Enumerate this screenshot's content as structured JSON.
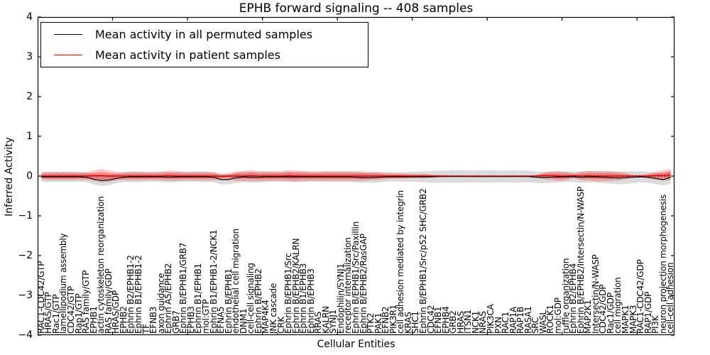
{
  "legend": {
    "items": [
      {
        "label": "Mean activity in all permuted samples",
        "color": "#000000"
      },
      {
        "label": "Mean activity in patient samples",
        "color": "#ff0000"
      }
    ]
  },
  "chart_data": {
    "type": "line",
    "title": "EPHB forward signaling -- 408 samples",
    "xlabel": "Cellular Entities",
    "ylabel": "Inferred Activity",
    "ylim": [
      -4,
      4
    ],
    "grid": false,
    "legend_position": "upper-left",
    "ytick_values": [
      4,
      3,
      2,
      1,
      0,
      -1,
      -2,
      -3,
      -4
    ],
    "ytick_labels": [
      "4",
      "3",
      "2",
      "1",
      "0",
      "−1",
      "−2",
      "−3",
      "−4"
    ],
    "xtick_positions": [
      10,
      20,
      30,
      40,
      50,
      60,
      70,
      80
    ],
    "categories": [
      "RAC1-CDC42/GTP",
      "HRAS/GTP",
      "Rac1/GTP",
      "lamellipodium assembly",
      "CDC42/GTP",
      "Rap1/GTP",
      "RAS family/GTP",
      "EPHB1",
      "actin cytoskeleton reorganization",
      "RAS family/GDP",
      "HRAS/GDP",
      "EPHB2",
      "Ephrin B2/EPHB1-2",
      "Ephrin B1/EPHB1-2",
      "TF",
      "EFNB3",
      "axon guidance",
      "Ephrin A5/EPHB2",
      "GRB7",
      "Ephrin B/EPHB1/GRB7",
      "EPHB3",
      "Ephrin B1/EPHB1",
      "mol:GTP",
      "Ephrin B1/EPHB1-2/NCK1",
      "EFNA5",
      "Ephrin B/EPHB1",
      "endothelial cell migration",
      "DNM1",
      "cell-cell signaling",
      "Ephrin B/EPHB2",
      "MAP4K4",
      "JNK cascade",
      "CRK",
      "Ephrin B/EPHB1/Src",
      "Ephrin B/EPHB2/KALRN",
      "Ephrin B1/EPHB3",
      "Ephrin B/EPHB3",
      "RRAS",
      "KALRN",
      "SYNJ1",
      "Endophilin/SYNJ1",
      "receptor internalization",
      "Ephrin B/EPHB1/Src/Paxillin",
      "Ephrin B/EPHB2/RasGAP",
      "PTK2",
      "PAK1",
      "EFNB2",
      "PIK3R1",
      "cell adhesion mediated by integrin",
      "KRAS",
      "SHC1",
      "Ephrin B/EPHB1/Src/p52 SHC/GRB2",
      "CDC42",
      "EFNB1",
      "EPHB4",
      "GRB2",
      "HRAS",
      "ITSN1",
      "NCK1",
      "NRAS",
      "PIK3CA",
      "PXN",
      "RAC1",
      "RAP1A",
      "RAP1B",
      "RASA1",
      "SRC",
      "WASL",
      "ROCK1",
      "mol:GDP",
      "ruffle organization",
      "Ephrin B2/EPHB4",
      "Ephrin B/EPHB2/Intersectin/N-WASP",
      "MAP2K1",
      "Intersectin/N-WASP",
      "CDC42/GDP",
      "Rac1/GDP",
      "cell migration",
      "MAPK1",
      "MAPK3",
      "RAC1-CDC42/GDP",
      "RAP1/GDP",
      "PI3K",
      "neuron projection morphogenesis",
      "cell-cell adhesion"
    ],
    "series": [
      {
        "name": "Mean activity in all permuted samples",
        "color": "#000000",
        "style": "solid",
        "width": 1.2,
        "values": [
          -0.02,
          -0.02,
          -0.02,
          -0.02,
          -0.02,
          -0.02,
          -0.03,
          -0.08,
          -0.11,
          -0.1,
          -0.06,
          -0.03,
          -0.02,
          -0.02,
          -0.02,
          -0.02,
          -0.02,
          -0.03,
          -0.02,
          -0.02,
          -0.02,
          -0.02,
          -0.02,
          -0.03,
          -0.09,
          -0.09,
          -0.04,
          -0.02,
          -0.03,
          -0.03,
          -0.02,
          -0.02,
          -0.02,
          -0.02,
          -0.02,
          -0.02,
          -0.02,
          -0.02,
          -0.02,
          -0.02,
          -0.02,
          -0.02,
          -0.03,
          -0.04,
          -0.04,
          -0.03,
          -0.02,
          -0.02,
          -0.02,
          -0.02,
          -0.02,
          -0.02,
          -0.02,
          -0.01,
          -0.01,
          -0.01,
          -0.01,
          -0.01,
          -0.01,
          -0.01,
          -0.01,
          -0.01,
          -0.01,
          -0.01,
          -0.01,
          -0.01,
          -0.03,
          -0.04,
          -0.03,
          -0.02,
          -0.02,
          -0.02,
          -0.03,
          -0.02,
          -0.02,
          -0.03,
          -0.04,
          -0.05,
          -0.04,
          -0.03,
          -0.02,
          -0.03,
          -0.06,
          -0.09,
          -0.03
        ]
      },
      {
        "name": "Mean activity in patient samples",
        "color": "#ff0000",
        "style": "solid",
        "width": 1.3,
        "values": [
          0,
          0,
          0,
          0,
          0,
          0,
          0,
          0.01,
          0.01,
          0,
          0,
          0,
          0,
          0,
          0,
          0,
          0,
          0.01,
          0,
          0,
          0,
          0,
          0,
          0,
          -0.01,
          0,
          0,
          0,
          0.01,
          0,
          0,
          0,
          0,
          0.01,
          0,
          0,
          0,
          0,
          0,
          0,
          0,
          0,
          0,
          0,
          0,
          0,
          0,
          0,
          0,
          0,
          0,
          0,
          0,
          0,
          0,
          0,
          0,
          0,
          0,
          0,
          0,
          0,
          0,
          0,
          0,
          0,
          0,
          0.01,
          0.01,
          0,
          0,
          0.01,
          0,
          0.01,
          0,
          0,
          0,
          0,
          0,
          0,
          0,
          0,
          0.01,
          0.02,
          0.03
        ]
      }
    ],
    "baseline": {
      "value": 0,
      "color": "#000000",
      "style": "dotted"
    },
    "bands": [
      {
        "name": "permuted-samples-range",
        "center_series": 0,
        "color": "#999999",
        "opacity": 0.35,
        "halfwidths": [
          0.12,
          0.13,
          0.13,
          0.13,
          0.13,
          0.12,
          0.12,
          0.13,
          0.14,
          0.13,
          0.12,
          0.12,
          0.13,
          0.13,
          0.12,
          0.12,
          0.13,
          0.13,
          0.13,
          0.12,
          0.12,
          0.13,
          0.13,
          0.12,
          0.12,
          0.12,
          0.13,
          0.13,
          0.13,
          0.13,
          0.13,
          0.12,
          0.12,
          0.13,
          0.13,
          0.13,
          0.12,
          0.12,
          0.13,
          0.13,
          0.13,
          0.13,
          0.13,
          0.13,
          0.13,
          0.13,
          0.12,
          0.12,
          0.12,
          0.12,
          0.13,
          0.14,
          0.15,
          0.15,
          0.15,
          0.16,
          0.16,
          0.15,
          0.15,
          0.16,
          0.16,
          0.15,
          0.15,
          0.16,
          0.15,
          0.15,
          0.14,
          0.14,
          0.14,
          0.14,
          0.13,
          0.13,
          0.14,
          0.14,
          0.14,
          0.15,
          0.15,
          0.16,
          0.16,
          0.15,
          0.14,
          0.14,
          0.14,
          0.15,
          0.16
        ]
      },
      {
        "name": "patient-samples-range-outer",
        "center_series": 1,
        "color": "#ff0000",
        "opacity": 0.22,
        "halfwidths": [
          0.09,
          0.1,
          0.1,
          0.1,
          0.1,
          0.1,
          0.1,
          0.13,
          0.17,
          0.14,
          0.11,
          0.1,
          0.11,
          0.11,
          0.1,
          0.1,
          0.11,
          0.13,
          0.12,
          0.11,
          0.11,
          0.11,
          0.11,
          0.1,
          0.07,
          0.08,
          0.12,
          0.13,
          0.14,
          0.13,
          0.12,
          0.12,
          0.12,
          0.14,
          0.14,
          0.13,
          0.12,
          0.12,
          0.12,
          0.12,
          0.12,
          0.12,
          0.13,
          0.12,
          0.1,
          0.1,
          0.08,
          0.07,
          0.07,
          0.06,
          0.05,
          0.06,
          0.04,
          0.03,
          0.02,
          0.02,
          0.02,
          0.02,
          0.02,
          0.02,
          0.02,
          0.02,
          0.02,
          0.02,
          0.02,
          0.02,
          0.03,
          0.08,
          0.11,
          0.12,
          0.11,
          0.06,
          0.11,
          0.12,
          0.13,
          0.13,
          0.12,
          0.11,
          0.08,
          0.03,
          0.03,
          0.06,
          0.1,
          0.13,
          0.14
        ]
      },
      {
        "name": "patient-samples-range-inner",
        "center_series": 1,
        "color": "#ff0000",
        "opacity": 0.3,
        "halfwidths": [
          0.05,
          0.06,
          0.06,
          0.06,
          0.06,
          0.06,
          0.06,
          0.07,
          0.09,
          0.08,
          0.06,
          0.06,
          0.06,
          0.06,
          0.06,
          0.06,
          0.06,
          0.07,
          0.07,
          0.06,
          0.06,
          0.06,
          0.06,
          0.06,
          0.04,
          0.04,
          0.07,
          0.07,
          0.08,
          0.07,
          0.07,
          0.07,
          0.07,
          0.08,
          0.08,
          0.07,
          0.07,
          0.07,
          0.07,
          0.07,
          0.07,
          0.07,
          0.07,
          0.07,
          0.06,
          0.06,
          0.04,
          0.04,
          0.04,
          0.03,
          0.03,
          0.03,
          0.02,
          0.02,
          0.01,
          0.01,
          0.01,
          0.01,
          0.01,
          0.01,
          0.01,
          0.01,
          0.01,
          0.01,
          0.01,
          0.01,
          0.02,
          0.04,
          0.06,
          0.07,
          0.06,
          0.03,
          0.06,
          0.07,
          0.07,
          0.07,
          0.07,
          0.06,
          0.04,
          0.02,
          0.02,
          0.03,
          0.06,
          0.07,
          0.08
        ]
      }
    ]
  }
}
